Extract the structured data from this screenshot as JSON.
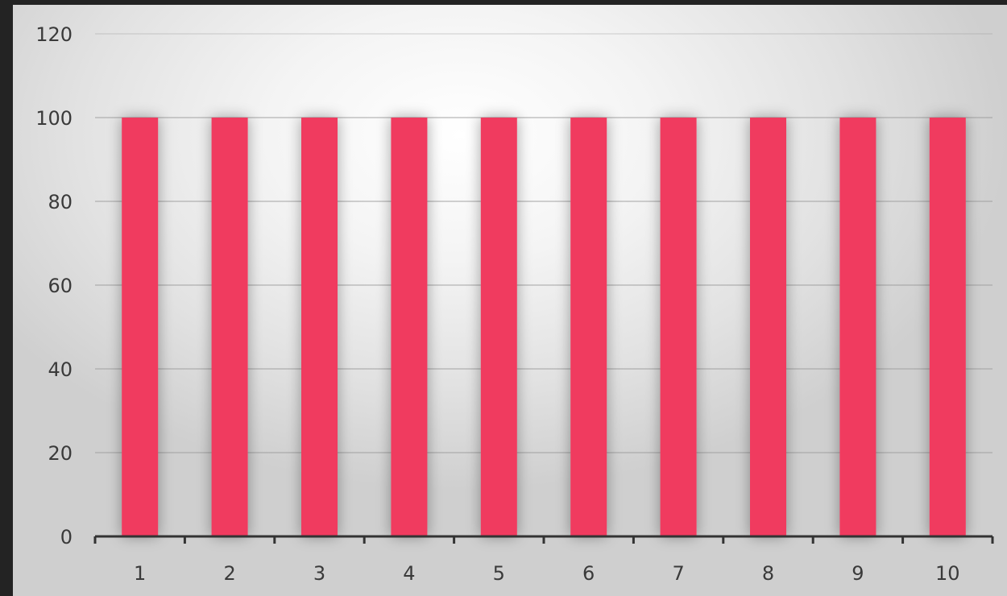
{
  "colors": {
    "bar": "#f03a5f",
    "gridline": "#9a9a9a",
    "axis": "#333333",
    "frame": "#232323"
  },
  "chart_data": {
    "type": "bar",
    "title": "",
    "xlabel": "",
    "ylabel": "",
    "categories": [
      "1",
      "2",
      "3",
      "4",
      "5",
      "6",
      "7",
      "8",
      "9",
      "10"
    ],
    "values": [
      100,
      100,
      100,
      100,
      100,
      100,
      100,
      100,
      100,
      100
    ],
    "ylim": [
      0,
      120
    ],
    "yticks": [
      "0",
      "20",
      "40",
      "60",
      "80",
      "100",
      "120"
    ],
    "grid": true,
    "legend": "none"
  }
}
